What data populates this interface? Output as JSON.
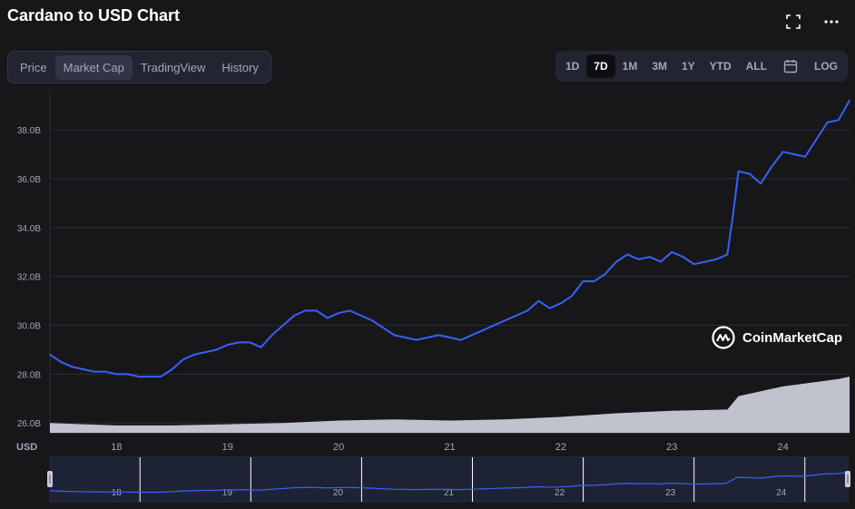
{
  "title": "Cardano to USD Chart",
  "header_icons": [
    "fullscreen-icon",
    "more-icon"
  ],
  "tabs": [
    {
      "label": "Price",
      "active": false
    },
    {
      "label": "Market Cap",
      "active": true
    },
    {
      "label": "TradingView",
      "active": false
    },
    {
      "label": "History",
      "active": false
    }
  ],
  "ranges": [
    {
      "label": "1D",
      "active": false
    },
    {
      "label": "7D",
      "active": true
    },
    {
      "label": "1M",
      "active": false
    },
    {
      "label": "3M",
      "active": false
    },
    {
      "label": "1Y",
      "active": false
    },
    {
      "label": "YTD",
      "active": false
    },
    {
      "label": "ALL",
      "active": false
    }
  ],
  "log_label": "LOG",
  "watermark": "CoinMarketCap",
  "colors": {
    "line": "#3861fb",
    "volume": "#c9ccd8",
    "background": "#17171a",
    "grid": "#2b2d38"
  },
  "chart_data": {
    "type": "line",
    "title": "Cardano to USD Chart",
    "ylabel": "USD",
    "xlabel": "",
    "y_tick_labels": [
      "26.0B",
      "28.0B",
      "30.0B",
      "32.0B",
      "34.0B",
      "36.0B",
      "38.0B"
    ],
    "y_ticks": [
      26,
      28,
      30,
      32,
      34,
      36,
      38
    ],
    "ylim": [
      25.6,
      39.6
    ],
    "y_unit": "B USD",
    "x_tick_labels": [
      "18",
      "19",
      "20",
      "21",
      "22",
      "23",
      "24"
    ],
    "x_ticks": [
      18,
      19,
      20,
      21,
      22,
      23,
      24
    ],
    "xlim": [
      17.4,
      24.6
    ],
    "grid": true,
    "series": [
      {
        "kind": "market_cap",
        "x": [
          17.4,
          17.5,
          17.6,
          17.7,
          17.8,
          17.9,
          18.0,
          18.1,
          18.2,
          18.3,
          18.4,
          18.5,
          18.6,
          18.7,
          18.8,
          18.9,
          19.0,
          19.1,
          19.2,
          19.3,
          19.4,
          19.5,
          19.6,
          19.7,
          19.8,
          19.9,
          20.0,
          20.1,
          20.2,
          20.3,
          20.4,
          20.5,
          20.6,
          20.7,
          20.8,
          20.9,
          21.0,
          21.1,
          21.2,
          21.3,
          21.4,
          21.5,
          21.6,
          21.7,
          21.8,
          21.9,
          22.0,
          22.1,
          22.2,
          22.3,
          22.4,
          22.5,
          22.6,
          22.7,
          22.8,
          22.9,
          23.0,
          23.1,
          23.2,
          23.3,
          23.4,
          23.5,
          23.55,
          23.6,
          23.7,
          23.8,
          23.9,
          24.0,
          24.1,
          24.2,
          24.3,
          24.4,
          24.5,
          24.6
        ],
        "y": [
          28.8,
          28.5,
          28.3,
          28.2,
          28.1,
          28.1,
          28.0,
          28.0,
          27.9,
          27.9,
          27.9,
          28.2,
          28.6,
          28.8,
          28.9,
          29.0,
          29.2,
          29.3,
          29.3,
          29.1,
          29.6,
          30.0,
          30.4,
          30.6,
          30.6,
          30.3,
          30.5,
          30.6,
          30.4,
          30.2,
          29.9,
          29.6,
          29.5,
          29.4,
          29.5,
          29.6,
          29.5,
          29.4,
          29.6,
          29.8,
          30.0,
          30.2,
          30.4,
          30.6,
          31.0,
          30.7,
          30.9,
          31.2,
          31.8,
          31.8,
          32.1,
          32.6,
          32.9,
          32.7,
          32.8,
          32.6,
          33.0,
          32.8,
          32.5,
          32.6,
          32.7,
          32.9,
          34.5,
          36.3,
          36.2,
          35.8,
          36.5,
          37.1,
          37.0,
          36.9,
          37.6,
          38.3,
          38.4,
          39.2
        ]
      },
      {
        "kind": "volume",
        "x": [
          17.4,
          18.0,
          18.5,
          19.0,
          19.5,
          20.0,
          20.5,
          21.0,
          21.5,
          22.0,
          22.5,
          23.0,
          23.5,
          23.6,
          24.0,
          24.5,
          24.6
        ],
        "y": [
          26.0,
          25.9,
          25.9,
          25.95,
          26.0,
          26.1,
          26.15,
          26.1,
          26.15,
          26.25,
          26.4,
          26.5,
          26.55,
          27.1,
          27.5,
          27.8,
          27.9
        ]
      }
    ],
    "navigator": {
      "x_tick_labels": [
        "18",
        "19",
        "20",
        "21",
        "22",
        "23",
        "24"
      ]
    }
  }
}
